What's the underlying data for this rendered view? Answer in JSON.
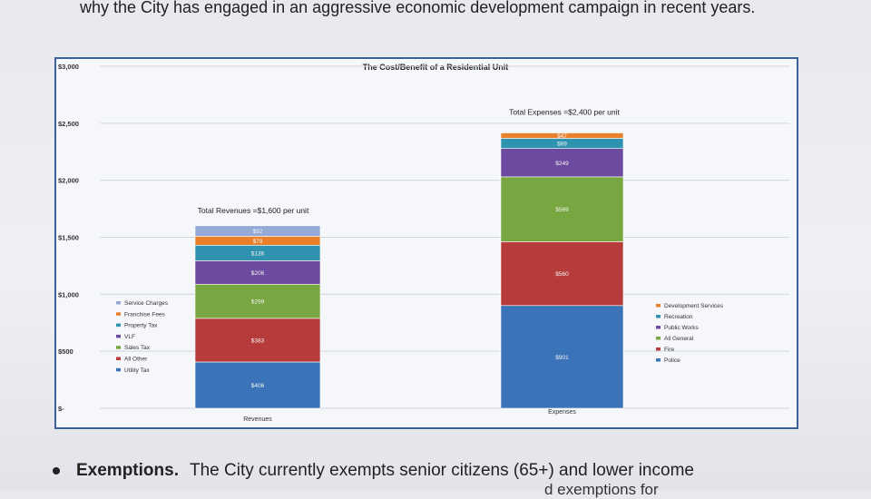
{
  "document": {
    "intro_text": "why the City has engaged in an aggressive economic development campaign in recent years.",
    "bullet_heading": "Exemptions.",
    "bullet_text": "The City currently exempts senior citizens (65+) and lower income",
    "next_line_fragment": "d exemptions for"
  },
  "chart_data": {
    "type": "bar",
    "stacked": true,
    "title": "The Cost/Benefit of a Residential Unit",
    "categories": [
      "Revenues",
      "Expenses"
    ],
    "ylim": [
      0,
      3000
    ],
    "yticks": [
      {
        "value": 0,
        "label": "$-"
      },
      {
        "value": 500,
        "label": "$500"
      },
      {
        "value": 1000,
        "label": "$1,000"
      },
      {
        "value": 1500,
        "label": "$1,500"
      },
      {
        "value": 2000,
        "label": "$2,000"
      },
      {
        "value": 2500,
        "label": "$2,500"
      },
      {
        "value": 3000,
        "label": "$3,000"
      }
    ],
    "grid": true,
    "stacks": [
      {
        "category": "Revenues",
        "total_label": "Total Revenues =$1,600 per unit",
        "legend_placement": "left",
        "series": [
          {
            "name": "Utility Tax",
            "value": 406,
            "label": "$406",
            "color": "#3a73b8"
          },
          {
            "name": "All Other",
            "value": 383,
            "label": "$383",
            "color": "#b63c3b"
          },
          {
            "name": "Sales Tax",
            "value": 299,
            "label": "$299",
            "color": "#78a640"
          },
          {
            "name": "VLF",
            "value": 206,
            "label": "$206",
            "color": "#6c4aa0"
          },
          {
            "name": "Property Tax",
            "value": 136,
            "label": "$136",
            "color": "#2f93b0"
          },
          {
            "name": "Franchise Fees",
            "value": 79,
            "label": "$79",
            "color": "#e9812c"
          },
          {
            "name": "Service Charges",
            "value": 92,
            "label": "$92",
            "color": "#93a9d6"
          }
        ]
      },
      {
        "category": "Expenses",
        "total_label": "Total Expenses =$2,400 per unit",
        "legend_placement": "right",
        "series": [
          {
            "name": "Police",
            "value": 901,
            "label": "$901",
            "color": "#3a73b8"
          },
          {
            "name": "Fire",
            "value": 560,
            "label": "$560",
            "color": "#b63c3b"
          },
          {
            "name": "All General",
            "value": 569,
            "label": "$569",
            "color": "#78a640"
          },
          {
            "name": "Public Works",
            "value": 249,
            "label": "$249",
            "color": "#6c4aa0"
          },
          {
            "name": "Recreation",
            "value": 89,
            "label": "$89",
            "color": "#2f93b0"
          },
          {
            "name": "Development Services",
            "value": 47,
            "label": "$47",
            "color": "#e9812c"
          }
        ]
      }
    ]
  }
}
